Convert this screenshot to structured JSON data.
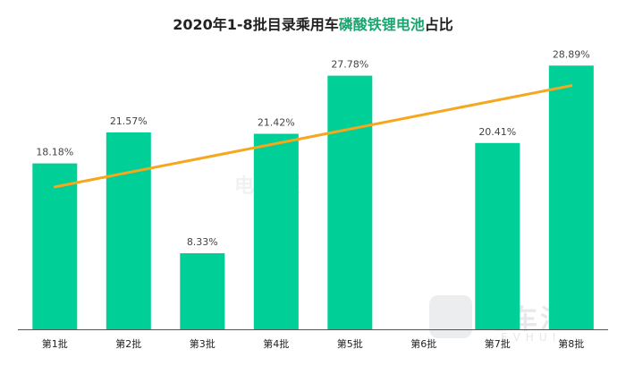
{
  "title": {
    "prefix": "2020年1-8批目录乘用车",
    "highlight": "磷酸铁锂电池",
    "suffix": "占比"
  },
  "colors": {
    "bar": "#00cf97",
    "trend": "#f7a71d",
    "title_highlight": "#16a76e",
    "axis": "#555555"
  },
  "watermark": {
    "brand": "电车汇",
    "brand_sub": "EVHUI",
    "icon": "evhui-logo-icon"
  },
  "chart_data": {
    "type": "bar",
    "categories": [
      "第1批",
      "第2批",
      "第3批",
      "第4批",
      "第5批",
      "第6批",
      "第7批",
      "第8批"
    ],
    "values": [
      18.18,
      21.57,
      8.33,
      21.42,
      27.78,
      0,
      20.41,
      28.89
    ],
    "data_labels": [
      "18.18%",
      "21.57%",
      "8.33%",
      "21.42%",
      "27.78%",
      "",
      "20.41%",
      "28.89%"
    ],
    "ylim": [
      0,
      30
    ],
    "trendline": {
      "type": "linear",
      "start": 15.6,
      "end": 26.7
    },
    "grid": false,
    "legend": "none"
  }
}
